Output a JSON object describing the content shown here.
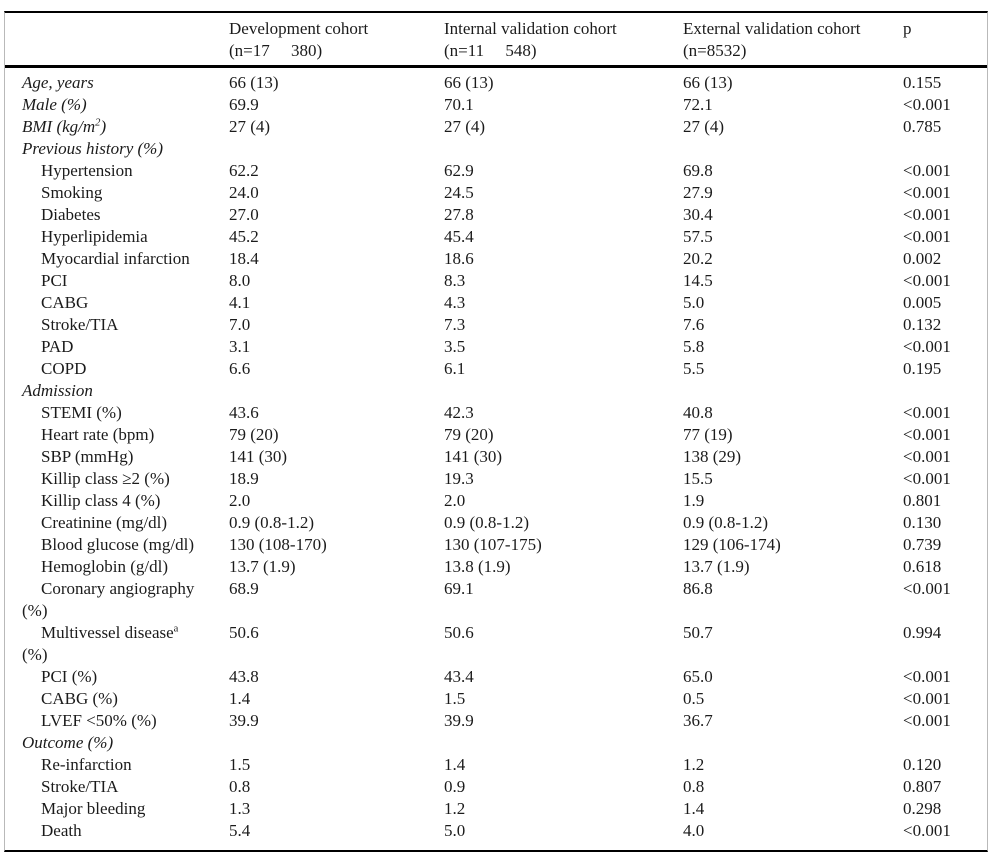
{
  "table": {
    "columns": [
      {
        "label": "Development cohort",
        "sublabel": "(n=17     380)"
      },
      {
        "label": "Internal validation cohort",
        "sublabel": "(n=11     548)"
      },
      {
        "label": "External validation cohort",
        "sublabel": "(n=8532)"
      },
      {
        "label": "p",
        "sublabel": ""
      }
    ],
    "rows": [
      {
        "level": 0,
        "label": "Age, years",
        "values": [
          "66 (13)",
          "66 (13)",
          "66 (13)",
          "0.155"
        ]
      },
      {
        "level": 0,
        "label": "Male (%)",
        "values": [
          "69.9",
          "70.1",
          "72.1",
          "<0.001"
        ]
      },
      {
        "level": 0,
        "label": "BMI (kg/m^{2})",
        "values": [
          "27 (4)",
          "27 (4)",
          "27 (4)",
          "0.785"
        ]
      },
      {
        "level": 0,
        "label": "Previous history (%)",
        "values": []
      },
      {
        "level": 1,
        "label": "Hypertension",
        "values": [
          "62.2",
          "62.9",
          "69.8",
          "<0.001"
        ]
      },
      {
        "level": 1,
        "label": "Smoking",
        "values": [
          "24.0",
          "24.5",
          "27.9",
          "<0.001"
        ]
      },
      {
        "level": 1,
        "label": "Diabetes",
        "values": [
          "27.0",
          "27.8",
          "30.4",
          "<0.001"
        ]
      },
      {
        "level": 1,
        "label": "Hyperlipidemia",
        "values": [
          "45.2",
          "45.4",
          "57.5",
          "<0.001"
        ]
      },
      {
        "level": 1,
        "label": "Myocardial infarction",
        "values": [
          "18.4",
          "18.6",
          "20.2",
          "0.002"
        ]
      },
      {
        "level": 1,
        "label": "PCI",
        "values": [
          "8.0",
          "8.3",
          "14.5",
          "<0.001"
        ]
      },
      {
        "level": 1,
        "label": "CABG",
        "values": [
          "4.1",
          "4.3",
          "5.0",
          "0.005"
        ]
      },
      {
        "level": 1,
        "label": "Stroke/TIA",
        "values": [
          "7.0",
          "7.3",
          "7.6",
          "0.132"
        ]
      },
      {
        "level": 1,
        "label": "PAD",
        "values": [
          "3.1",
          "3.5",
          "5.8",
          "<0.001"
        ]
      },
      {
        "level": 1,
        "label": "COPD",
        "values": [
          "6.6",
          "6.1",
          "5.5",
          "0.195"
        ]
      },
      {
        "level": 0,
        "label": "Admission",
        "values": []
      },
      {
        "level": 1,
        "label": "STEMI (%)",
        "values": [
          "43.6",
          "42.3",
          "40.8",
          "<0.001"
        ]
      },
      {
        "level": 1,
        "label": "Heart rate (bpm)",
        "values": [
          "79 (20)",
          "79 (20)",
          "77 (19)",
          "<0.001"
        ]
      },
      {
        "level": 1,
        "label": "SBP (mmHg)",
        "values": [
          "141 (30)",
          "141 (30)",
          "138 (29)",
          "<0.001"
        ]
      },
      {
        "level": 1,
        "label": "Killip class ≥2 (%)",
        "values": [
          "18.9",
          "19.3",
          "15.5",
          "<0.001"
        ]
      },
      {
        "level": 1,
        "label": "Killip class 4 (%)",
        "values": [
          "2.0",
          "2.0",
          "1.9",
          "0.801"
        ]
      },
      {
        "level": 1,
        "label": "Creatinine (mg/dl)",
        "values": [
          "0.9 (0.8-1.2)",
          "0.9 (0.8-1.2)",
          "0.9 (0.8-1.2)",
          "0.130"
        ]
      },
      {
        "level": 1,
        "label": "Blood glucose (mg/dl)",
        "values": [
          "130 (108-170)",
          "130 (107-175)",
          "129 (106-174)",
          "0.739"
        ]
      },
      {
        "level": 1,
        "label": "Hemoglobin (g/dl)",
        "values": [
          "13.7 (1.9)",
          "13.8 (1.9)",
          "13.7 (1.9)",
          "0.618"
        ]
      },
      {
        "level": 1,
        "label": "Coronary angiography",
        "label2": "(%)",
        "values": [
          "68.9",
          "69.1",
          "86.8",
          "<0.001"
        ]
      },
      {
        "level": 1,
        "label": "Multivessel disease^{a}",
        "label2": "(%)",
        "values": [
          "50.6",
          "50.6",
          "50.7",
          "0.994"
        ]
      },
      {
        "level": 1,
        "label": "PCI (%)",
        "values": [
          "43.8",
          "43.4",
          "65.0",
          "<0.001"
        ]
      },
      {
        "level": 1,
        "label": "CABG (%)",
        "values": [
          "1.4",
          "1.5",
          "0.5",
          "<0.001"
        ]
      },
      {
        "level": 1,
        "label": "LVEF <50% (%)",
        "values": [
          "39.9",
          "39.9",
          "36.7",
          "<0.001"
        ]
      },
      {
        "level": 0,
        "label": "Outcome (%)",
        "values": []
      },
      {
        "level": 1,
        "label": "Re-infarction",
        "values": [
          "1.5",
          "1.4",
          "1.2",
          "0.120"
        ]
      },
      {
        "level": 1,
        "label": "Stroke/TIA",
        "values": [
          "0.8",
          "0.9",
          "0.8",
          "0.807"
        ]
      },
      {
        "level": 1,
        "label": "Major bleeding",
        "values": [
          "1.3",
          "1.2",
          "1.4",
          "0.298"
        ]
      },
      {
        "level": 1,
        "label": "Death",
        "values": [
          "5.4",
          "5.0",
          "4.0",
          "<0.001"
        ]
      }
    ]
  }
}
